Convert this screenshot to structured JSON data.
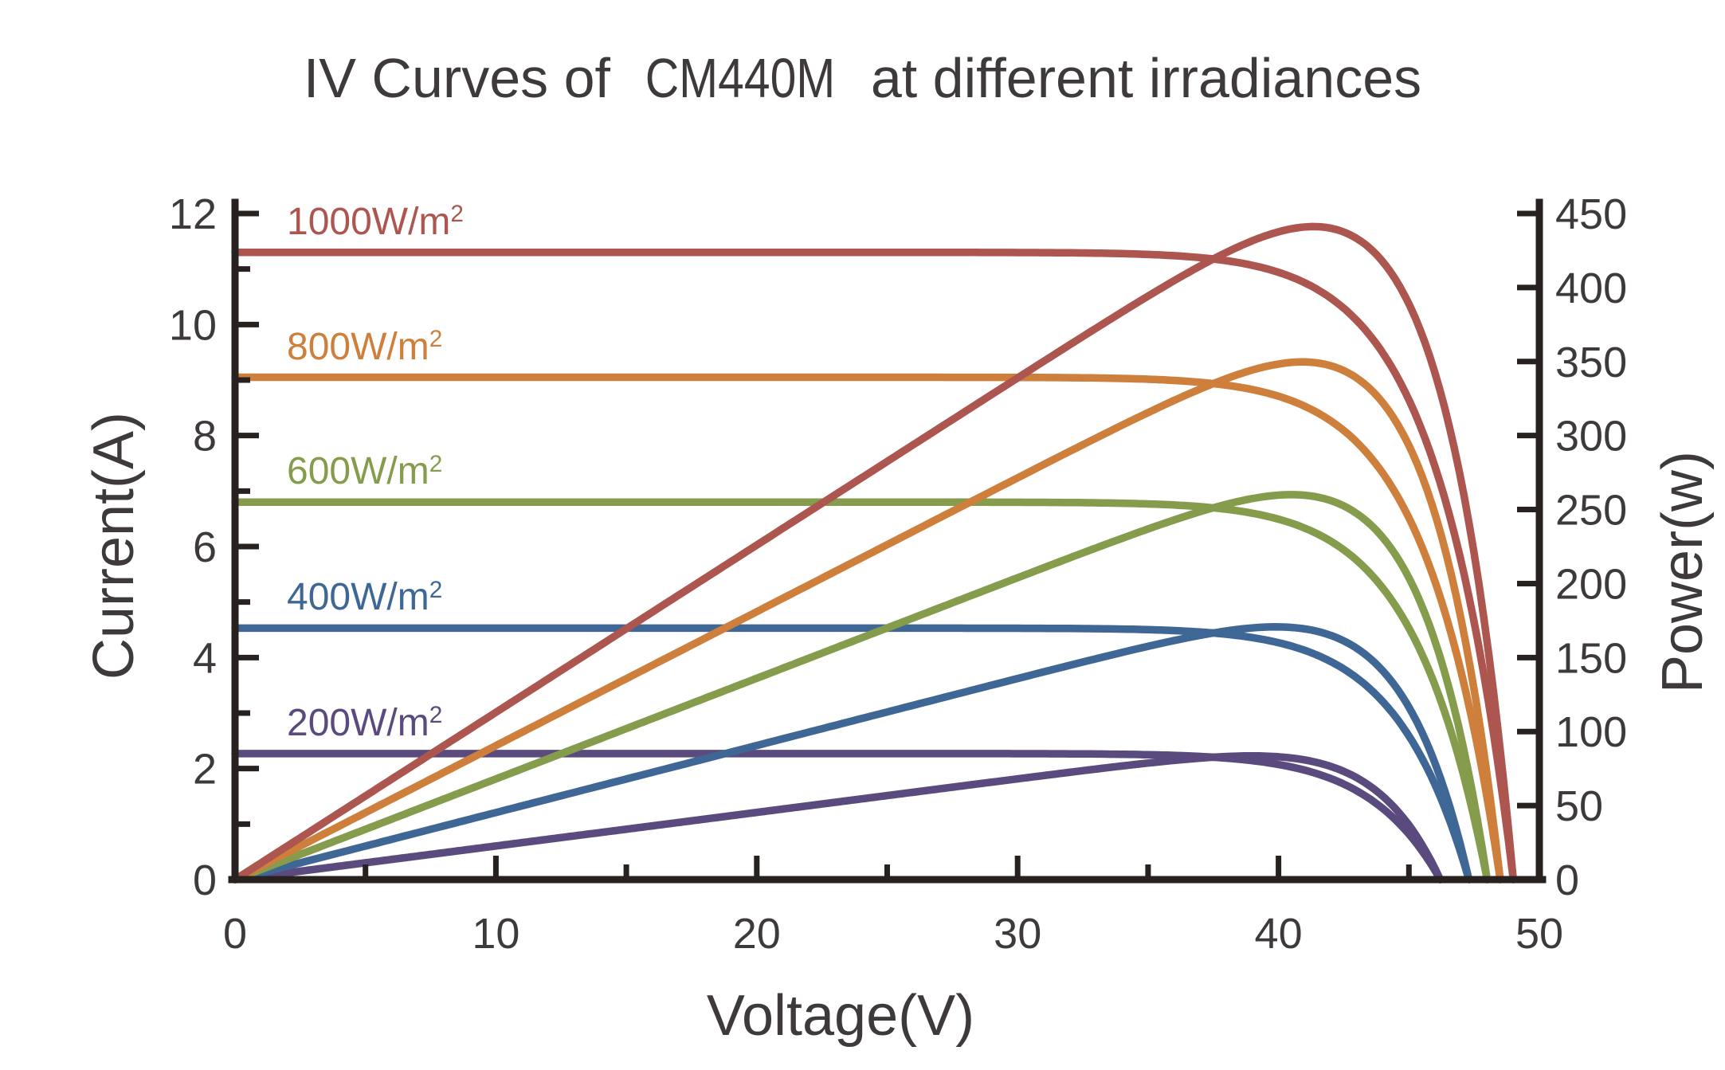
{
  "chart_data": {
    "type": "line",
    "title": {
      "prefix": "IV Curves of",
      "model": "CM440M",
      "suffix": "at different irradiances",
      "full": "IV Curves of CM440M at different irradiances"
    },
    "xlabel": "Voltage(V)",
    "ylabel_left": "Current(A)",
    "ylabel_right": "Power(w)",
    "x_axis": {
      "min": 0,
      "max": 50,
      "major_step": 10,
      "minor_step": 5,
      "tick_labels": [
        "0",
        "10",
        "20",
        "30",
        "40",
        "50"
      ]
    },
    "y_left_axis": {
      "min": 0,
      "max": 12,
      "major_step": 2,
      "minor_step": 1,
      "tick_labels": [
        "0",
        "2",
        "4",
        "6",
        "8",
        "10",
        "12"
      ]
    },
    "y_right_axis": {
      "min": 0,
      "max": 450,
      "major_step": 50,
      "tick_labels": [
        "0",
        "50",
        "100",
        "150",
        "200",
        "250",
        "300",
        "350",
        "400",
        "450"
      ]
    },
    "grid": false,
    "legend_position": "inline-labels-left",
    "knee_exponent": 17,
    "series": [
      {
        "id": "1000",
        "label_base": "1000W/m",
        "label_sup": "2",
        "color": "#ac564f",
        "isc_A": 11.3,
        "voc_V": 49.0,
        "vmp_V": 41.4,
        "pmax_W": 441,
        "curves": [
          "current_vs_voltage",
          "power_vs_voltage"
        ]
      },
      {
        "id": "800",
        "label_base": "800W/m",
        "label_sup": "2",
        "color": "#ce7f3c",
        "isc_A": 9.05,
        "voc_V": 48.5,
        "vmp_V": 40.9,
        "pmax_W": 353,
        "curves": [
          "current_vs_voltage",
          "power_vs_voltage"
        ]
      },
      {
        "id": "600",
        "label_base": "600W/m",
        "label_sup": "2",
        "color": "#849c4b",
        "isc_A": 6.8,
        "voc_V": 48.0,
        "vmp_V": 40.5,
        "pmax_W": 264,
        "curves": [
          "current_vs_voltage",
          "power_vs_voltage"
        ]
      },
      {
        "id": "400",
        "label_base": "400W/m",
        "label_sup": "2",
        "color": "#3f6795",
        "isc_A": 4.53,
        "voc_V": 47.3,
        "vmp_V": 40.0,
        "pmax_W": 176,
        "curves": [
          "current_vs_voltage",
          "power_vs_voltage"
        ]
      },
      {
        "id": "200",
        "label_base": "200W/m",
        "label_sup": "2",
        "color": "#5b4a7e",
        "isc_A": 2.27,
        "voc_V": 46.2,
        "vmp_V": 39.0,
        "pmax_W": 88,
        "curves": [
          "current_vs_voltage",
          "power_vs_voltage"
        ]
      }
    ],
    "colors": {
      "axis": "#27211f",
      "text": "#3e3a3b"
    }
  }
}
